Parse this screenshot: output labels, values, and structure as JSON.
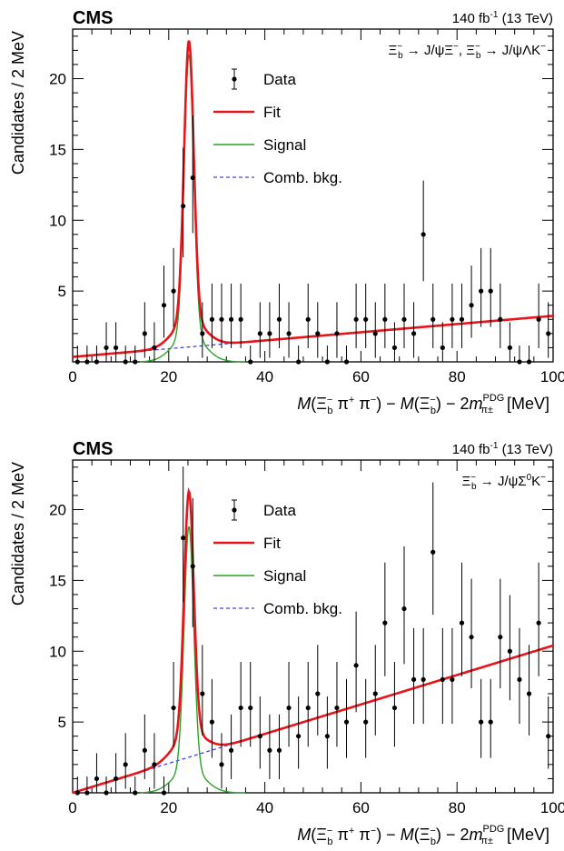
{
  "chart_data": [
    {
      "type": "scatter",
      "experiment_label": "CMS",
      "lumi_label": "140 fb",
      "lumi_sup": "-1",
      "lumi_energy": "(13 TeV)",
      "decay_label": "Ξ⁻ₕ → J/ψΞ⁻, Ξ⁻ₕ → J/ψΛK⁻",
      "decay_parts": {
        "a": "Ξ",
        "a_sup": "−",
        "a_sub": "b",
        "b": " → J/ψΞ",
        "b_sup": "−",
        "c": ", Ξ",
        "c_sup": "−",
        "c_sub": "b",
        "d": " → J/ψΛK",
        "d_sup": "−"
      },
      "xlabel": "M(Ξ⁻_b π⁺ π⁻) − M(Ξ⁻_b) − 2m^PDG_π± [MeV]",
      "ylabel": "Candidates / 2 MeV",
      "xlim": [
        0,
        100
      ],
      "ylim": [
        0,
        23.5
      ],
      "xticks": [
        0,
        20,
        40,
        60,
        80,
        100
      ],
      "yticks": [
        5,
        10,
        15,
        20
      ],
      "legend": {
        "placement": "top-center",
        "entries": [
          "Data",
          "Fit",
          "Signal",
          "Comb. bkg."
        ]
      },
      "colors": {
        "data": "#000000",
        "fit": "#e8141b",
        "signal": "#2aa22a",
        "bkg": "#4646d8"
      },
      "model": {
        "peak": 24.2,
        "width": 1.0,
        "fit_peak_height": 22.7,
        "bkg_at_0": 0.35,
        "bkg_at_100": 3.25,
        "bkg_turnon": 20
      },
      "data": {
        "x": [
          1,
          3,
          5,
          7,
          9,
          11,
          13,
          15,
          17,
          19,
          21,
          23,
          25,
          27,
          29,
          31,
          33,
          35,
          37,
          39,
          41,
          43,
          45,
          47,
          49,
          51,
          53,
          55,
          57,
          59,
          61,
          63,
          65,
          67,
          69,
          71,
          73,
          75,
          77,
          79,
          81,
          83,
          85,
          87,
          89,
          91,
          93,
          95,
          97,
          99
        ],
        "y": [
          0,
          0,
          0,
          1,
          1,
          0,
          0,
          2,
          1,
          4,
          5,
          11,
          13,
          2,
          3,
          3,
          3,
          3,
          0,
          2,
          2,
          3,
          2,
          0,
          3,
          2,
          0,
          2,
          0,
          3,
          3,
          2,
          3,
          1,
          3,
          2,
          9,
          3,
          1,
          3,
          3,
          4,
          5,
          5,
          3,
          1,
          0,
          0,
          3,
          2
        ]
      }
    },
    {
      "type": "scatter",
      "experiment_label": "CMS",
      "lumi_label": "140 fb",
      "lumi_sup": "-1",
      "lumi_energy": "(13 TeV)",
      "decay_parts": {
        "a": "Ξ",
        "a_sup": "−",
        "a_sub": "b",
        "b": " → J/ψΣ",
        "b_sup": "0",
        "c": "K",
        "c_sup": "−"
      },
      "xlabel": "M(Ξ⁻_b π⁺ π⁻) − M(Ξ⁻_b) − 2m^PDG_π± [MeV]",
      "ylabel": "Candidates / 2 MeV",
      "xlim": [
        0,
        100
      ],
      "ylim": [
        0,
        23.5
      ],
      "xticks": [
        0,
        20,
        40,
        60,
        80,
        100
      ],
      "yticks": [
        5,
        10,
        15,
        20
      ],
      "legend": {
        "placement": "top-center",
        "entries": [
          "Data",
          "Fit",
          "Signal",
          "Comb. bkg."
        ]
      },
      "colors": {
        "data": "#000000",
        "fit": "#e8141b",
        "signal": "#2aa22a",
        "bkg": "#4646d8"
      },
      "model": {
        "peak": 24.2,
        "width": 1.0,
        "fit_peak_height": 21.3,
        "bkg_at_0": 0.0,
        "bkg_at_100": 10.4,
        "bkg_turnon": 20
      },
      "data": {
        "x": [
          1,
          3,
          5,
          7,
          9,
          11,
          13,
          15,
          17,
          19,
          21,
          23,
          25,
          27,
          29,
          31,
          33,
          35,
          37,
          39,
          41,
          43,
          45,
          47,
          49,
          51,
          53,
          55,
          57,
          59,
          61,
          63,
          65,
          67,
          69,
          71,
          73,
          75,
          77,
          79,
          81,
          83,
          85,
          87,
          89,
          91,
          93,
          95,
          97,
          99
        ],
        "y": [
          0,
          0,
          1,
          0,
          1,
          2,
          0,
          3,
          2,
          0,
          6,
          18,
          16,
          7,
          5,
          2,
          3,
          6,
          6,
          4,
          3,
          3,
          6,
          4,
          6,
          7,
          4,
          6,
          5,
          9,
          5,
          7,
          12,
          6,
          13,
          8,
          8,
          17,
          8,
          8,
          12,
          11,
          5,
          5,
          11,
          10,
          8,
          7,
          12,
          4
        ]
      }
    }
  ],
  "axis_title_parts": {
    "m1": "M",
    "open": "(Ξ",
    "xi_sup": "−",
    "xi_sub": "b",
    "pions": " π",
    "pip_sup": "+",
    "pim": " π",
    "pim_sup": "−",
    "close_minus": ") − ",
    "m2": "M",
    "open2": "(Ξ",
    "close2": ") − 2",
    "m3": "m",
    "pdg_sup": "PDG",
    "pi_sub": "π±",
    "unit": " [MeV]"
  }
}
